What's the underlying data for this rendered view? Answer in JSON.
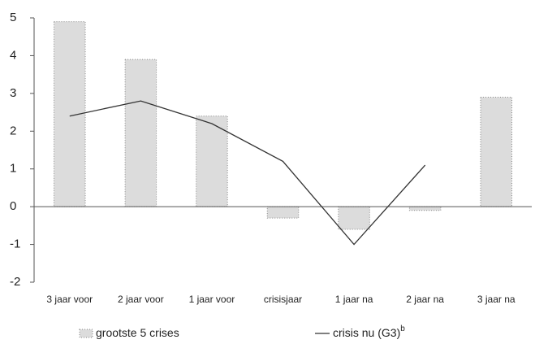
{
  "chart_data": {
    "type": "bar_line",
    "categories": [
      "3 jaar voor",
      "2 jaar voor",
      "1 jaar voor",
      "crisisjaar",
      "1 jaar na",
      "2 jaar na",
      "3 jaar na"
    ],
    "series": [
      {
        "name": "grootste 5 crises",
        "type": "bar",
        "color": "#dcdcdc",
        "values": [
          4.9,
          3.9,
          2.4,
          -0.3,
          -0.6,
          -0.1,
          2.9
        ]
      },
      {
        "name": "crisis nu (G3)",
        "name_superscript": "b",
        "type": "line",
        "color": "#333333",
        "values": [
          2.4,
          2.8,
          2.2,
          1.2,
          -1.0,
          1.1,
          null
        ]
      }
    ],
    "ylim": [
      -2,
      5
    ],
    "yticks": [
      -2,
      -1,
      0,
      1,
      2,
      3,
      4,
      5
    ],
    "grid": false
  }
}
